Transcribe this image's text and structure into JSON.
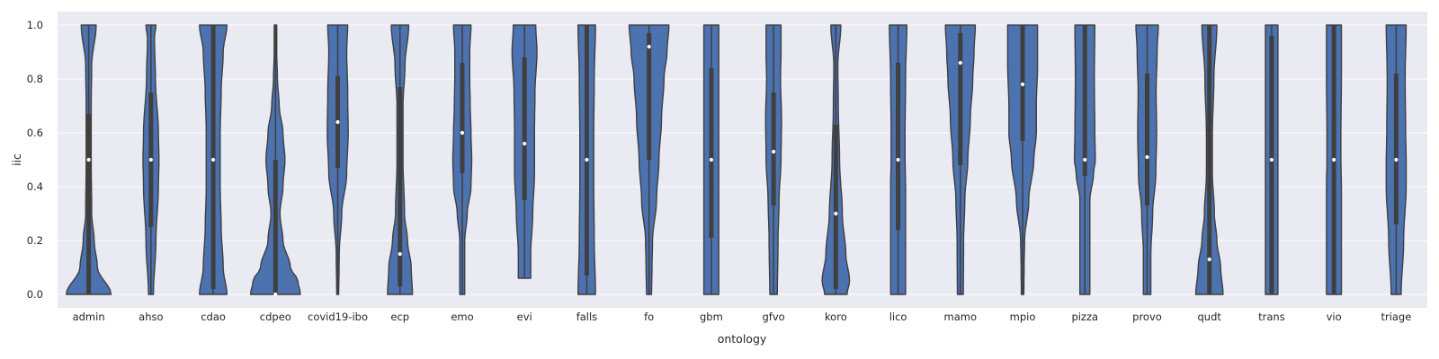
{
  "chart_data": {
    "type": "violin",
    "xlabel": "ontology",
    "ylabel": "iic",
    "ylim": [
      -0.05,
      1.05
    ],
    "yticks": [
      "0.0",
      "0.2",
      "0.4",
      "0.6",
      "0.8",
      "1.0"
    ],
    "grid": true,
    "colors": {
      "background": "#eaeaf2",
      "violin": "#4c72b0",
      "line": "#3f3f3f",
      "grid": "#ffffff",
      "median": "#ffffff"
    },
    "categories": [
      "admin",
      "ahso",
      "cdao",
      "cdpeo",
      "covid19-ibo",
      "ecp",
      "emo",
      "evi",
      "falls",
      "fo",
      "gbm",
      "gfvo",
      "koro",
      "lico",
      "mamo",
      "mpio",
      "pizza",
      "provo",
      "qudt",
      "trans",
      "vio",
      "triage"
    ],
    "series": [
      {
        "ymin": 0.0,
        "ymax": 1.0,
        "q1": 0.0,
        "median": 0.5,
        "q3": 0.67,
        "profile": [
          [
            0,
            0.9
          ],
          [
            0.1,
            0.35
          ],
          [
            0.2,
            0.22
          ],
          [
            0.3,
            0.12
          ],
          [
            0.5,
            0.1
          ],
          [
            0.7,
            0.1
          ],
          [
            0.85,
            0.12
          ],
          [
            1.0,
            0.3
          ]
        ]
      },
      {
        "ymin": 0.0,
        "ymax": 1.0,
        "q1": 0.25,
        "median": 0.5,
        "q3": 0.75,
        "profile": [
          [
            0,
            0.1
          ],
          [
            0.2,
            0.2
          ],
          [
            0.4,
            0.3
          ],
          [
            0.5,
            0.32
          ],
          [
            0.6,
            0.3
          ],
          [
            0.8,
            0.18
          ],
          [
            0.95,
            0.14
          ],
          [
            1.0,
            0.2
          ]
        ]
      },
      {
        "ymin": 0.0,
        "ymax": 1.0,
        "q1": 0.02,
        "median": 0.5,
        "q3": 1.0,
        "profile": [
          [
            0,
            0.55
          ],
          [
            0.1,
            0.4
          ],
          [
            0.25,
            0.32
          ],
          [
            0.4,
            0.28
          ],
          [
            0.5,
            0.28
          ],
          [
            0.6,
            0.28
          ],
          [
            0.75,
            0.32
          ],
          [
            0.9,
            0.4
          ],
          [
            1.0,
            0.55
          ]
        ]
      },
      {
        "ymin": 0.0,
        "ymax": 1.0,
        "q1": 0.0,
        "median": 0.0,
        "q3": 0.5,
        "profile": [
          [
            0,
            1.0
          ],
          [
            0.05,
            0.9
          ],
          [
            0.1,
            0.6
          ],
          [
            0.2,
            0.3
          ],
          [
            0.3,
            0.18
          ],
          [
            0.4,
            0.3
          ],
          [
            0.5,
            0.38
          ],
          [
            0.6,
            0.3
          ],
          [
            0.7,
            0.15
          ],
          [
            0.8,
            0.08
          ],
          [
            0.9,
            0.05
          ],
          [
            1.0,
            0.05
          ]
        ]
      },
      {
        "ymin": 0.0,
        "ymax": 1.0,
        "q1": 0.47,
        "median": 0.64,
        "q3": 0.81,
        "profile": [
          [
            0,
            0.04
          ],
          [
            0.15,
            0.06
          ],
          [
            0.3,
            0.16
          ],
          [
            0.45,
            0.36
          ],
          [
            0.6,
            0.42
          ],
          [
            0.75,
            0.4
          ],
          [
            0.9,
            0.36
          ],
          [
            1.0,
            0.4
          ]
        ]
      },
      {
        "ymin": 0.0,
        "ymax": 1.0,
        "q1": 0.03,
        "median": 0.15,
        "q3": 0.77,
        "profile": [
          [
            0,
            0.5
          ],
          [
            0.1,
            0.45
          ],
          [
            0.2,
            0.3
          ],
          [
            0.3,
            0.18
          ],
          [
            0.5,
            0.12
          ],
          [
            0.7,
            0.12
          ],
          [
            0.85,
            0.2
          ],
          [
            1.0,
            0.35
          ]
        ]
      },
      {
        "ymin": 0.0,
        "ymax": 1.0,
        "q1": 0.45,
        "median": 0.6,
        "q3": 0.86,
        "profile": [
          [
            0,
            0.1
          ],
          [
            0.1,
            0.1
          ],
          [
            0.2,
            0.1
          ],
          [
            0.3,
            0.2
          ],
          [
            0.4,
            0.35
          ],
          [
            0.5,
            0.38
          ],
          [
            0.6,
            0.35
          ],
          [
            0.7,
            0.32
          ],
          [
            0.8,
            0.3
          ],
          [
            0.9,
            0.3
          ],
          [
            1.0,
            0.35
          ]
        ]
      },
      {
        "ymin": 0.06,
        "ymax": 1.0,
        "q1": 0.35,
        "median": 0.56,
        "q3": 0.88,
        "profile": [
          [
            0.06,
            0.25
          ],
          [
            0.15,
            0.25
          ],
          [
            0.3,
            0.33
          ],
          [
            0.45,
            0.4
          ],
          [
            0.6,
            0.4
          ],
          [
            0.75,
            0.42
          ],
          [
            0.9,
            0.5
          ],
          [
            1.0,
            0.45
          ]
        ]
      },
      {
        "ymin": 0.0,
        "ymax": 1.0,
        "q1": 0.07,
        "median": 0.5,
        "q3": 1.0,
        "profile": [
          [
            0,
            0.35
          ],
          [
            0.2,
            0.3
          ],
          [
            0.4,
            0.28
          ],
          [
            0.5,
            0.28
          ],
          [
            0.6,
            0.28
          ],
          [
            0.8,
            0.3
          ],
          [
            1.0,
            0.35
          ]
        ]
      },
      {
        "ymin": 0.0,
        "ymax": 1.0,
        "q1": 0.5,
        "median": 0.92,
        "q3": 0.97,
        "profile": [
          [
            0,
            0.1
          ],
          [
            0.1,
            0.12
          ],
          [
            0.2,
            0.14
          ],
          [
            0.35,
            0.3
          ],
          [
            0.5,
            0.4
          ],
          [
            0.65,
            0.5
          ],
          [
            0.8,
            0.6
          ],
          [
            0.9,
            0.72
          ],
          [
            1.0,
            0.8
          ]
        ]
      },
      {
        "ymin": 0.0,
        "ymax": 1.0,
        "q1": 0.21,
        "median": 0.5,
        "q3": 0.84,
        "profile": [
          [
            0,
            0.3
          ],
          [
            0.2,
            0.3
          ],
          [
            0.4,
            0.3
          ],
          [
            0.5,
            0.3
          ],
          [
            0.6,
            0.3
          ],
          [
            0.8,
            0.3
          ],
          [
            1.0,
            0.3
          ]
        ]
      },
      {
        "ymin": 0.0,
        "ymax": 1.0,
        "q1": 0.33,
        "median": 0.53,
        "q3": 0.75,
        "profile": [
          [
            0,
            0.15
          ],
          [
            0.2,
            0.18
          ],
          [
            0.35,
            0.22
          ],
          [
            0.5,
            0.3
          ],
          [
            0.65,
            0.32
          ],
          [
            0.8,
            0.28
          ],
          [
            0.9,
            0.3
          ],
          [
            1.0,
            0.3
          ]
        ]
      },
      {
        "ymin": 0.0,
        "ymax": 1.0,
        "q1": 0.02,
        "median": 0.3,
        "q3": 0.63,
        "profile": [
          [
            0,
            0.45
          ],
          [
            0.05,
            0.55
          ],
          [
            0.15,
            0.4
          ],
          [
            0.3,
            0.26
          ],
          [
            0.5,
            0.15
          ],
          [
            0.7,
            0.1
          ],
          [
            0.85,
            0.08
          ],
          [
            1.0,
            0.2
          ]
        ]
      },
      {
        "ymin": 0.0,
        "ymax": 1.0,
        "q1": 0.24,
        "median": 0.5,
        "q3": 0.86,
        "profile": [
          [
            0,
            0.3
          ],
          [
            0.2,
            0.3
          ],
          [
            0.4,
            0.3
          ],
          [
            0.5,
            0.28
          ],
          [
            0.6,
            0.28
          ],
          [
            0.8,
            0.3
          ],
          [
            1.0,
            0.35
          ]
        ]
      },
      {
        "ymin": 0.0,
        "ymax": 1.0,
        "q1": 0.48,
        "median": 0.86,
        "q3": 0.97,
        "profile": [
          [
            0,
            0.12
          ],
          [
            0.2,
            0.13
          ],
          [
            0.35,
            0.18
          ],
          [
            0.5,
            0.3
          ],
          [
            0.65,
            0.4
          ],
          [
            0.8,
            0.5
          ],
          [
            0.9,
            0.55
          ],
          [
            1.0,
            0.6
          ]
        ]
      },
      {
        "ymin": 0.0,
        "ymax": 1.0,
        "q1": 0.57,
        "median": 0.78,
        "q3": 1.0,
        "profile": [
          [
            0,
            0.05
          ],
          [
            0.1,
            0.06
          ],
          [
            0.2,
            0.08
          ],
          [
            0.35,
            0.25
          ],
          [
            0.5,
            0.45
          ],
          [
            0.6,
            0.55
          ],
          [
            0.7,
            0.55
          ],
          [
            0.85,
            0.6
          ],
          [
            1.0,
            0.6
          ]
        ]
      },
      {
        "ymin": 0.0,
        "ymax": 1.0,
        "q1": 0.44,
        "median": 0.5,
        "q3": 1.0,
        "profile": [
          [
            0,
            0.2
          ],
          [
            0.2,
            0.2
          ],
          [
            0.35,
            0.2
          ],
          [
            0.45,
            0.35
          ],
          [
            0.5,
            0.42
          ],
          [
            0.6,
            0.4
          ],
          [
            0.8,
            0.38
          ],
          [
            1.0,
            0.4
          ]
        ]
      },
      {
        "ymin": 0.0,
        "ymax": 1.0,
        "q1": 0.33,
        "median": 0.51,
        "q3": 0.82,
        "profile": [
          [
            0,
            0.15
          ],
          [
            0.15,
            0.15
          ],
          [
            0.3,
            0.22
          ],
          [
            0.45,
            0.35
          ],
          [
            0.6,
            0.38
          ],
          [
            0.75,
            0.36
          ],
          [
            0.9,
            0.4
          ],
          [
            1.0,
            0.45
          ]
        ]
      },
      {
        "ymin": 0.0,
        "ymax": 1.0,
        "q1": 0.0,
        "median": 0.13,
        "q3": 1.0,
        "profile": [
          [
            0,
            0.55
          ],
          [
            0.1,
            0.45
          ],
          [
            0.2,
            0.3
          ],
          [
            0.3,
            0.2
          ],
          [
            0.45,
            0.12
          ],
          [
            0.6,
            0.12
          ],
          [
            0.8,
            0.18
          ],
          [
            1.0,
            0.3
          ]
        ]
      },
      {
        "ymin": 0.0,
        "ymax": 1.0,
        "q1": 0.0,
        "median": 0.5,
        "q3": 0.96,
        "profile": [
          [
            0,
            0.25
          ],
          [
            0.2,
            0.25
          ],
          [
            0.4,
            0.25
          ],
          [
            0.5,
            0.25
          ],
          [
            0.6,
            0.25
          ],
          [
            0.8,
            0.25
          ],
          [
            1.0,
            0.25
          ]
        ]
      },
      {
        "ymin": 0.0,
        "ymax": 1.0,
        "q1": 0.0,
        "median": 0.5,
        "q3": 1.0,
        "profile": [
          [
            0,
            0.3
          ],
          [
            0.2,
            0.3
          ],
          [
            0.4,
            0.3
          ],
          [
            0.5,
            0.28
          ],
          [
            0.6,
            0.28
          ],
          [
            0.8,
            0.3
          ],
          [
            1.0,
            0.3
          ]
        ]
      },
      {
        "ymin": 0.0,
        "ymax": 1.0,
        "q1": 0.26,
        "median": 0.5,
        "q3": 0.82,
        "profile": [
          [
            0,
            0.2
          ],
          [
            0.2,
            0.3
          ],
          [
            0.4,
            0.4
          ],
          [
            0.5,
            0.4
          ],
          [
            0.6,
            0.38
          ],
          [
            0.8,
            0.36
          ],
          [
            1.0,
            0.4
          ]
        ]
      }
    ]
  }
}
